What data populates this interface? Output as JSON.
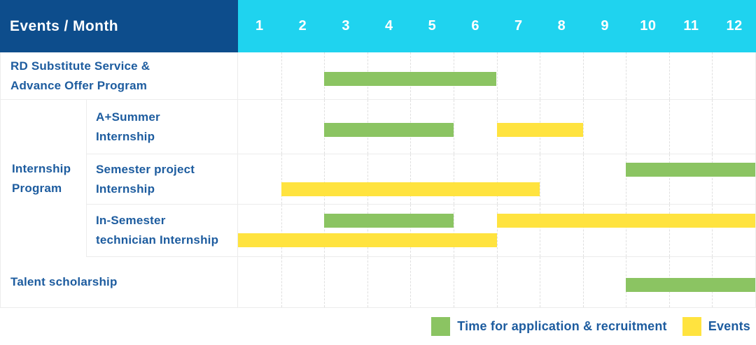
{
  "header": {
    "title": "Events / Month",
    "months": [
      "1",
      "2",
      "3",
      "4",
      "5",
      "6",
      "7",
      "8",
      "9",
      "10",
      "11",
      "12"
    ]
  },
  "colors": {
    "header_bg": "#0D4D8C",
    "months_bg": "#1FD3EF",
    "label_text": "#1D5C9F",
    "grid_solid": "#ECECEC",
    "grid_dashed": "#DFDFDF",
    "header_text": "#FFFFFF"
  },
  "chart_data": {
    "type": "bar",
    "variant": "gantt",
    "title": "Events / Month",
    "x_categories": [
      "1",
      "2",
      "3",
      "4",
      "5",
      "6",
      "7",
      "8",
      "9",
      "10",
      "11",
      "12"
    ],
    "x_range": [
      1,
      12
    ],
    "grid": "dashed-vertical",
    "legend_position": "bottom-right",
    "series": {
      "application": {
        "label": "Time for application & recruitment",
        "color": "#8BC462"
      },
      "event": {
        "label": "Events",
        "color": "#FFE33F"
      }
    },
    "legend_order": [
      "application",
      "event"
    ],
    "rows": [
      {
        "group": "",
        "label_lines": [
          "RD Substitute Service &",
          "Advance Offer Program"
        ],
        "bars_lines": [
          [
            {
              "series": "application",
              "start_month": 3,
              "end_month": 6
            }
          ]
        ]
      },
      {
        "group": "Internship Program",
        "label_lines": [
          "A+Summer",
          "Internship"
        ],
        "bars_lines": [
          [
            {
              "series": "application",
              "start_month": 3,
              "end_month": 5
            },
            {
              "series": "event",
              "start_month": 7,
              "end_month": 8
            }
          ]
        ]
      },
      {
        "group": "Internship Program",
        "label_lines": [
          "Semester project",
          "Internship"
        ],
        "bars_lines": [
          [
            {
              "series": "application",
              "start_month": 10,
              "end_month": 12
            }
          ],
          [
            {
              "series": "event",
              "start_month": 2,
              "end_month": 7
            }
          ]
        ]
      },
      {
        "group": "Internship Program",
        "label_lines": [
          "In-Semester",
          "technician Internship"
        ],
        "bars_lines": [
          [
            {
              "series": "application",
              "start_month": 3,
              "end_month": 5
            },
            {
              "series": "event",
              "start_month": 7,
              "end_month": 12
            }
          ],
          [
            {
              "series": "event",
              "start_month": 1,
              "end_month": 6
            }
          ]
        ]
      },
      {
        "group": "",
        "label_lines": [
          "Talent scholarship"
        ],
        "bars_lines": [
          [
            {
              "series": "application",
              "start_month": 10,
              "end_month": 12
            }
          ]
        ]
      }
    ]
  }
}
